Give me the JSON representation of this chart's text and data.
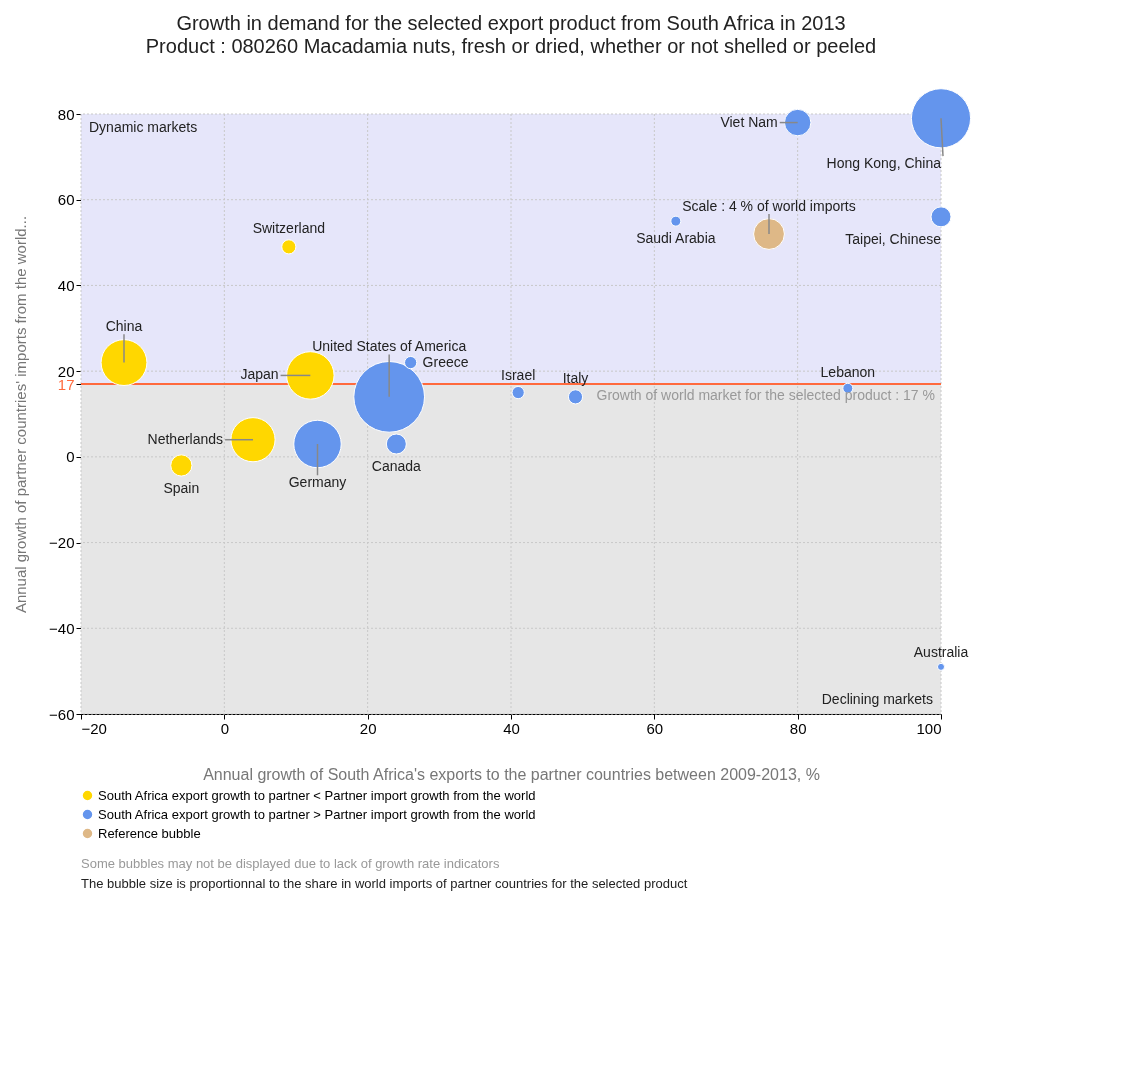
{
  "chart_data": {
    "type": "bubble",
    "title": "Growth in demand for the selected export product from South Africa in 2013",
    "subtitle": "Product : 080260 Macadamia nuts, fresh or dried, whether or not shelled or peeled",
    "xlabel": "Annual growth of South Africa's exports to the partner countries between 2009-2013, %",
    "ylabel": "Annual growth of partner countries' imports from the world...",
    "xlim": [
      -20,
      100
    ],
    "xticks": [
      -20,
      0,
      20,
      40,
      60,
      80,
      100
    ],
    "ylim": [
      -60,
      80
    ],
    "yticks": [
      -60,
      -40,
      -20,
      0,
      17,
      20,
      40,
      60,
      80
    ],
    "grid": true,
    "legend": "bottom",
    "marker": "circle",
    "series": [
      {
        "name": "South Africa export growth to partner < Partner import growth from the world",
        "color": "#ffd700",
        "x": [
          -14,
          -6,
          9,
          12,
          4
        ],
        "values": [
          22,
          -2,
          49,
          19,
          4
        ],
        "sizes": [
          0.42,
          0.09,
          0.04,
          0.45,
          0.39
        ]
      },
      {
        "name": "South Africa export growth to partner > Partner import growth from the world",
        "color": "#6495ed",
        "x": [
          23,
          26,
          24,
          13,
          41,
          49,
          63,
          80,
          100,
          100,
          87,
          100
        ],
        "values": [
          14,
          22,
          3,
          3,
          15,
          14,
          55,
          78,
          79,
          56,
          16,
          -49
        ],
        "sizes": [
          1,
          0.03,
          0.08,
          0.45,
          0.03,
          0.04,
          0.02,
          0.14,
          0.7,
          0.08,
          0.02,
          0.01
        ]
      },
      {
        "name": "Reference bubble",
        "color": "#deb887",
        "x": [
          76
        ],
        "values": [
          52
        ],
        "sizes": [
          0.19
        ]
      }
    ],
    "ref_lines": [
      {
        "axis": "y",
        "value": 17,
        "label": "Growth of world market for the selected product : 17 %",
        "color": "#ff6a3d"
      }
    ],
    "bands": [
      {
        "axis": "y",
        "from": 17,
        "to": 80,
        "label": "Dynamic markets",
        "color": "#e6e6fa"
      },
      {
        "axis": "y",
        "from": -60,
        "to": 17,
        "label": "Declining markets",
        "color": "#e6e6e6"
      }
    ],
    "annotations": [
      {
        "text": "China",
        "x": -14,
        "y": 22
      },
      {
        "text": "Spain",
        "x": -6,
        "y": -2
      },
      {
        "text": "Switzerland",
        "x": 9,
        "y": 49
      },
      {
        "text": "Japan",
        "x": 12,
        "y": 19
      },
      {
        "text": "Netherlands",
        "x": 4,
        "y": 4
      },
      {
        "text": "United States of America",
        "x": 23,
        "y": 14
      },
      {
        "text": "Greece",
        "x": 26,
        "y": 22
      },
      {
        "text": "Canada",
        "x": 24,
        "y": 3
      },
      {
        "text": "Germany",
        "x": 13,
        "y": 3
      },
      {
        "text": "Israel",
        "x": 41,
        "y": 15
      },
      {
        "text": "Italy",
        "x": 49,
        "y": 14
      },
      {
        "text": "Saudi Arabia",
        "x": 63,
        "y": 55
      },
      {
        "text": "Viet Nam",
        "x": 80,
        "y": 78
      },
      {
        "text": "Hong Kong, China",
        "x": 100,
        "y": 79
      },
      {
        "text": "Taipei, Chinese",
        "x": 100,
        "y": 56
      },
      {
        "text": "Lebanon",
        "x": 87,
        "y": 16
      },
      {
        "text": "Australia",
        "x": 100,
        "y": -49
      },
      {
        "text": "Scale : 4 % of world imports",
        "x": 76,
        "y": 52
      },
      "Some bubbles may not be displayed due to lack of growth rate indicators",
      "The bubble size is proportionnal to the share in world imports of partner countries for the selected product"
    ]
  }
}
